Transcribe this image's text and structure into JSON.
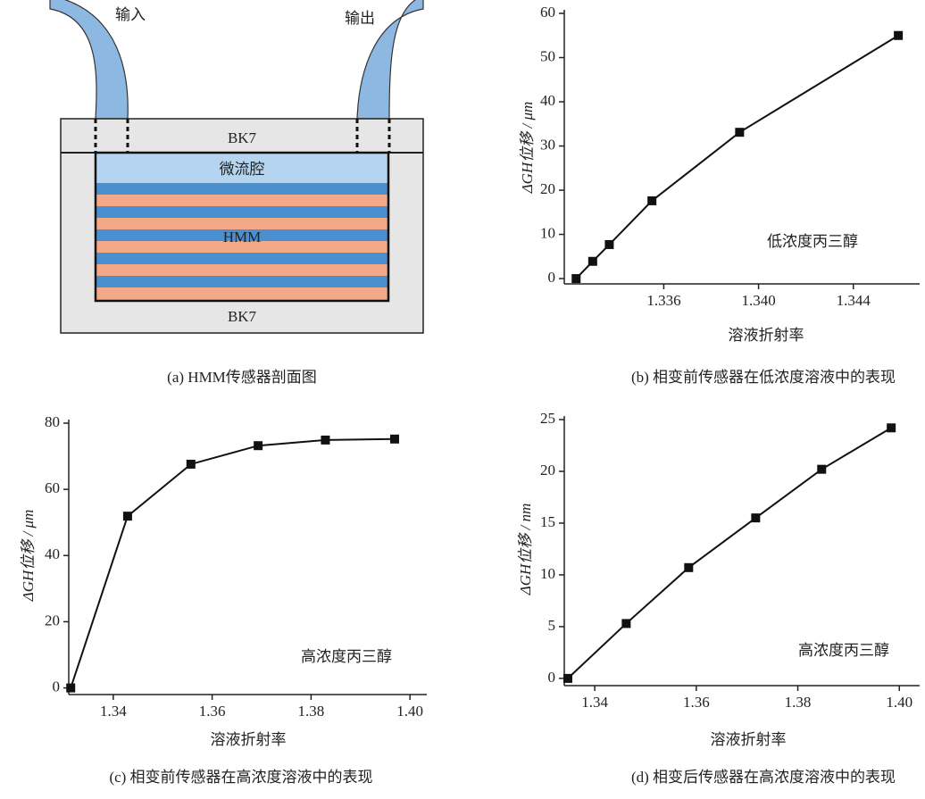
{
  "diagram": {
    "input": "输入",
    "output": "输出",
    "top_layer": "BK7",
    "cavity": "微流腔",
    "hmm": "HMM",
    "substrate": "BK7",
    "caption": "(a) HMM传感器剖面图"
  },
  "chart_data": [
    {
      "type": "line",
      "caption": "(b) 相变前传感器在低浓度溶液中的表现",
      "annotation": "低浓度丙三醇",
      "x_label": "溶液折射率",
      "y_label": "ΔGH位移 / μm",
      "x": [
        1.3323,
        1.333,
        1.3337,
        1.3355,
        1.3392,
        1.3459
      ],
      "series": [
        {
          "color": "#111111",
          "values": [
            0,
            3.9,
            7.7,
            17.6,
            33.1,
            55
          ]
        }
      ],
      "xlim": [
        1.3318,
        1.3468
      ],
      "ylim": [
        -1.2,
        60
      ],
      "xticks": [
        1.336,
        {
          "value": 1.34,
          "label": "1.340"
        },
        1.344
      ],
      "yticks": [
        0,
        10,
        20,
        30,
        40,
        50,
        60
      ]
    },
    {
      "type": "line",
      "caption": "(c) 相变前传感器在高浓度溶液中的表现",
      "annotation": "高浓度丙三醇",
      "x_label": "溶液折射率",
      "y_label": "ΔGH位移 / μm",
      "x": [
        1.3314,
        1.3429,
        1.3557,
        1.3693,
        1.3829,
        1.3969
      ],
      "series": [
        {
          "color": "#111111",
          "values": [
            0,
            51.9,
            67.6,
            73.2,
            74.9,
            75.2
          ]
        }
      ],
      "xlim": [
        1.331,
        1.4034
      ],
      "ylim": [
        -2,
        80
      ],
      "xticks": [
        1.34,
        1.36,
        1.38,
        {
          "value": 1.4,
          "label": "1.40"
        }
      ],
      "yticks": [
        0,
        20,
        40,
        60,
        80
      ]
    },
    {
      "type": "line",
      "caption": "(d) 相变后传感器在高浓度溶液中的表现",
      "annotation": "高浓度丙三醇",
      "x_label": "溶液折射率",
      "y_label": "ΔGH位移 / nm",
      "x": [
        1.3347,
        1.3462,
        1.3585,
        1.3717,
        1.3847,
        1.3984
      ],
      "series": [
        {
          "color": "#111111",
          "values": [
            0,
            5.3,
            10.7,
            15.5,
            20.2,
            24.2
          ]
        }
      ],
      "xlim": [
        1.334,
        1.404
      ],
      "ylim": [
        -0.7,
        25
      ],
      "xticks": [
        1.34,
        1.36,
        1.38,
        {
          "value": 1.4,
          "label": "1.40"
        }
      ],
      "yticks": [
        0,
        5,
        10,
        15,
        20,
        25
      ]
    }
  ]
}
